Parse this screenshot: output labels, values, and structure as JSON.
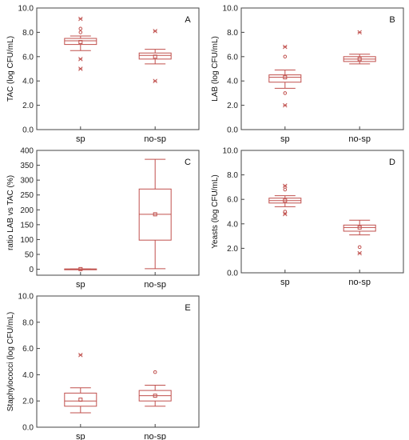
{
  "chart_data": [
    {
      "type": "box",
      "panel_label": "A",
      "ylabel": "TAC (log CFU/mL)",
      "ylim": [
        0,
        10
      ],
      "yticks": [
        "0.0",
        "2.0",
        "4.0",
        "6.0",
        "8.0",
        "10.0"
      ],
      "categories": [
        "sp",
        "no-sp"
      ],
      "boxes": [
        {
          "q1": 7.0,
          "q3": 7.5,
          "median": 7.3,
          "mean": 7.2,
          "whisker_low": 6.5,
          "whisker_high": 7.7,
          "outliers": [
            8.3,
            8.0
          ],
          "extremes": [
            9.1,
            5.8,
            5.0
          ]
        },
        {
          "q1": 5.8,
          "q3": 6.3,
          "median": 6.1,
          "mean": 6.0,
          "whisker_low": 5.4,
          "whisker_high": 6.6,
          "outliers": [],
          "extremes": [
            8.1,
            4.0
          ]
        }
      ]
    },
    {
      "type": "box",
      "panel_label": "B",
      "ylabel": "LAB (log CFU/mL)",
      "ylim": [
        0,
        10
      ],
      "yticks": [
        "0.0",
        "2.0",
        "4.0",
        "6.0",
        "8.0",
        "10.0"
      ],
      "categories": [
        "sp",
        "no-sp"
      ],
      "boxes": [
        {
          "q1": 3.9,
          "q3": 4.5,
          "median": 4.3,
          "mean": 4.3,
          "whisker_low": 3.4,
          "whisker_high": 4.9,
          "outliers": [
            6.0,
            3.0
          ],
          "extremes": [
            6.8,
            2.0
          ]
        },
        {
          "q1": 5.6,
          "q3": 6.0,
          "median": 5.8,
          "mean": 5.8,
          "whisker_low": 5.4,
          "whisker_high": 6.2,
          "outliers": [],
          "extremes": [
            8.0
          ]
        }
      ]
    },
    {
      "type": "box",
      "panel_label": "C",
      "ylabel": "ratio LAB vs TAC (%)",
      "ylim": [
        -20,
        400
      ],
      "yticks": [
        "0",
        "50",
        "100",
        "150",
        "200",
        "250",
        "300",
        "350",
        "400"
      ],
      "categories": [
        "sp",
        "no-sp"
      ],
      "boxes": [
        {
          "q1": 0,
          "q3": 1,
          "median": 0.5,
          "mean": 0.5,
          "whisker_low": 0,
          "whisker_high": 1,
          "outliers": [],
          "extremes": []
        },
        {
          "q1": 98,
          "q3": 270,
          "median": 185,
          "mean": 185,
          "whisker_low": 2,
          "whisker_high": 370,
          "outliers": [],
          "extremes": []
        }
      ]
    },
    {
      "type": "box",
      "panel_label": "D",
      "ylabel": "Yeasts (log CFU/mL)",
      "ylim": [
        0,
        10
      ],
      "yticks": [
        "0.0",
        "2.0",
        "4.0",
        "6.0",
        "8.0",
        "10.0"
      ],
      "categories": [
        "sp",
        "no-sp"
      ],
      "boxes": [
        {
          "q1": 5.7,
          "q3": 6.1,
          "median": 5.9,
          "mean": 5.9,
          "whisker_low": 5.4,
          "whisker_high": 6.3,
          "outliers": [
            6.8,
            5.0
          ],
          "extremes": [
            7.1,
            4.8
          ]
        },
        {
          "q1": 3.4,
          "q3": 3.9,
          "median": 3.7,
          "mean": 3.7,
          "whisker_low": 3.1,
          "whisker_high": 4.3,
          "outliers": [
            2.1
          ],
          "extremes": [
            1.6
          ]
        }
      ]
    },
    {
      "type": "box",
      "panel_label": "E",
      "ylabel": "Staphylococci (log CFU/mL)",
      "ylim": [
        0,
        10
      ],
      "yticks": [
        "0.0",
        "2.0",
        "4.0",
        "6.0",
        "8.0",
        "10.0"
      ],
      "categories": [
        "sp",
        "no-sp"
      ],
      "boxes": [
        {
          "q1": 1.6,
          "q3": 2.6,
          "median": 2.0,
          "mean": 2.1,
          "whisker_low": 1.1,
          "whisker_high": 3.0,
          "outliers": [],
          "extremes": [
            5.5
          ]
        },
        {
          "q1": 2.0,
          "q3": 2.8,
          "median": 2.4,
          "mean": 2.4,
          "whisker_low": 1.6,
          "whisker_high": 3.2,
          "outliers": [
            4.2
          ],
          "extremes": []
        }
      ]
    }
  ],
  "colors": {
    "box": "#c0504d",
    "axis": "#444444",
    "grid": "#888888"
  },
  "legend": {
    "mean_marker": "square",
    "outlier_marker": "circle",
    "extreme_marker": "asterisk"
  }
}
